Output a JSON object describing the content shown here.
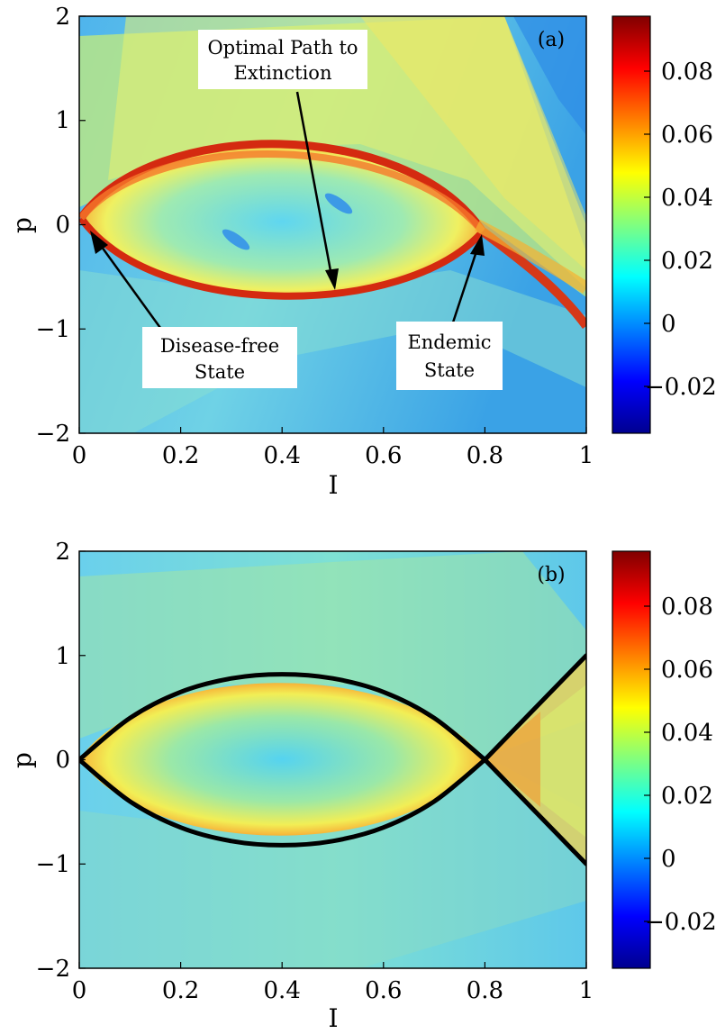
{
  "chart_data": [
    {
      "type": "heatmap",
      "panel_label": "(a)",
      "xlabel": "I",
      "ylabel": "p",
      "xlim": [
        0,
        1
      ],
      "ylim": [
        -2,
        2
      ],
      "x_ticks": [
        "0",
        "0.2",
        "0.4",
        "0.6",
        "0.8",
        "1"
      ],
      "y_ticks": [
        "-2",
        "-1",
        "0",
        "1",
        "2"
      ],
      "colorbar": {
        "range": [
          -0.035,
          0.097
        ],
        "ticks": [
          "0.08",
          "0.06",
          "0.04",
          "0.02",
          "0",
          "-0.02"
        ]
      },
      "grid": false,
      "annotations": [
        {
          "text": [
            "Optimal Path to",
            "Extinction"
          ],
          "target": [
            0.5,
            -0.74
          ]
        },
        {
          "text": [
            "Disease-free",
            "State"
          ],
          "target": [
            0.02,
            -0.02
          ]
        },
        {
          "text": [
            "Endemic",
            "State"
          ],
          "target": [
            0.8,
            0.0
          ]
        }
      ]
    },
    {
      "type": "heatmap",
      "panel_label": "(b)",
      "xlabel": "I",
      "ylabel": "p",
      "xlim": [
        0,
        1
      ],
      "ylim": [
        -2,
        2
      ],
      "x_ticks": [
        "0",
        "0.2",
        "0.4",
        "0.6",
        "0.8",
        "1"
      ],
      "y_ticks": [
        "-2",
        "-1",
        "0",
        "1",
        "2"
      ],
      "colorbar": {
        "range": [
          -0.035,
          0.097
        ],
        "ticks": [
          "0.08",
          "0.06",
          "0.04",
          "0.02",
          "0",
          "-0.02"
        ]
      },
      "grid": false,
      "overlay_curves": [
        {
          "x": [
            0,
            0.1,
            0.2,
            0.3,
            0.4,
            0.5,
            0.6,
            0.7,
            0.8
          ],
          "y": [
            0,
            0.4,
            0.65,
            0.78,
            0.82,
            0.78,
            0.65,
            0.4,
            0
          ]
        },
        {
          "x": [
            0,
            0.1,
            0.2,
            0.3,
            0.4,
            0.5,
            0.6,
            0.7,
            0.8
          ],
          "y": [
            0,
            -0.4,
            -0.65,
            -0.78,
            -0.82,
            -0.78,
            -0.65,
            -0.4,
            0
          ]
        },
        {
          "x": [
            0.8,
            0.9,
            1.0
          ],
          "y": [
            0,
            0.5,
            1.0
          ]
        },
        {
          "x": [
            0.8,
            0.9,
            1.0
          ],
          "y": [
            0,
            -0.5,
            -1.0
          ]
        }
      ]
    }
  ]
}
